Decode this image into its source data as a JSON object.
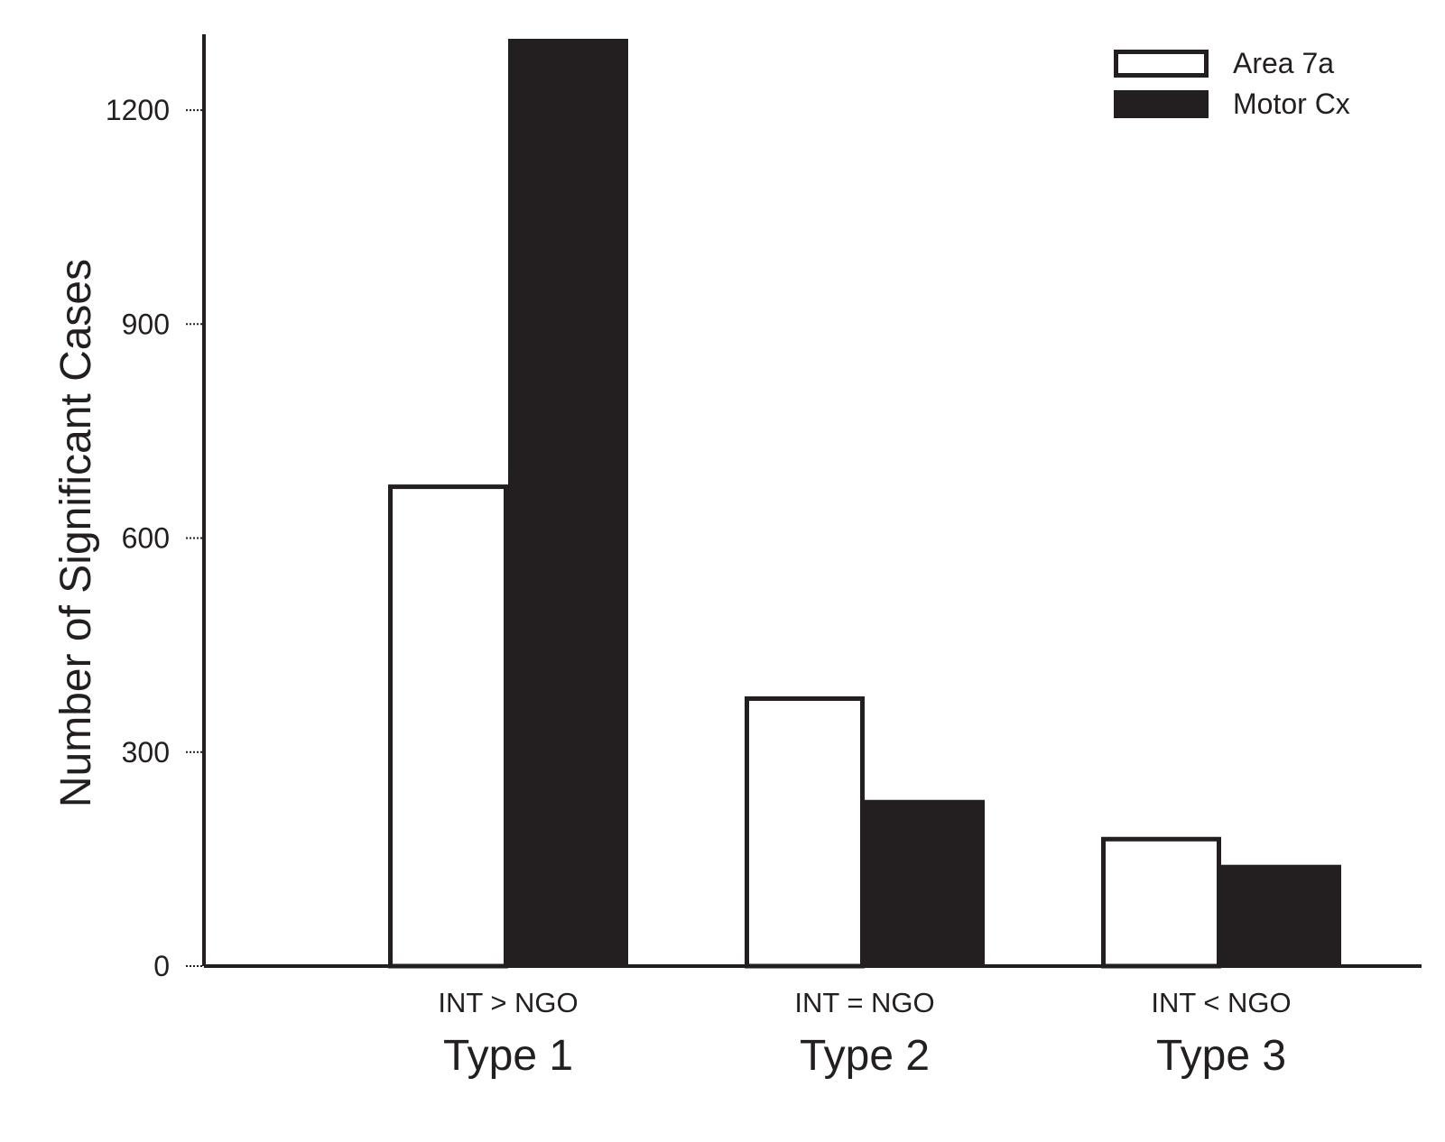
{
  "chart_data": {
    "type": "bar",
    "categories": [
      "Type 1",
      "Type 2",
      "Type 3"
    ],
    "subcategories": [
      "INT > NGO",
      "INT = NGO",
      "INT < NGO"
    ],
    "series": [
      {
        "name": "Area 7a",
        "values": [
          672,
          375,
          178
        ],
        "color": "#ffffff",
        "stroke": "#231f20"
      },
      {
        "name": "Motor Cx",
        "values": [
          1300,
          233,
          142
        ],
        "color": "#231f20",
        "stroke": "#231f20"
      }
    ],
    "title": "",
    "xlabel": "",
    "ylabel": "Number of Significant Cases",
    "ylim": [
      0,
      1300
    ],
    "yticks": [
      0,
      300,
      600,
      900,
      1200
    ],
    "grid": false,
    "legend_position": "top-right"
  }
}
